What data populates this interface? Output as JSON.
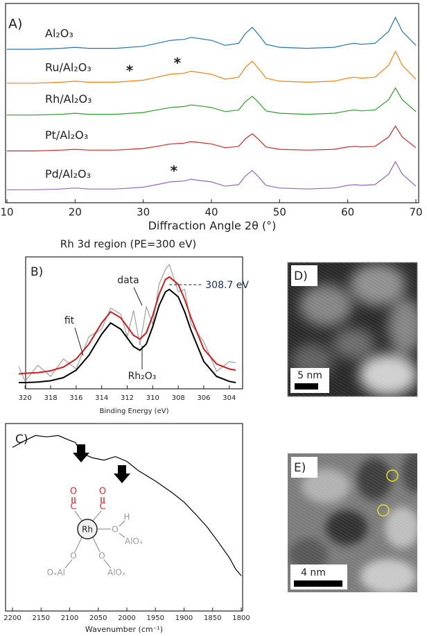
{
  "chart_data": [
    {
      "type": "line",
      "panel_label": "A)",
      "xlabel": "Diffraction Angle 2θ (°)",
      "x": [
        10,
        14,
        18,
        20,
        22,
        26,
        30,
        32,
        34,
        36,
        37,
        38,
        40,
        42,
        44,
        45,
        46,
        47,
        48,
        50,
        54,
        58,
        60,
        61,
        62,
        64,
        66,
        67,
        68,
        70
      ],
      "xlim": [
        10,
        70
      ],
      "xticks": [
        10,
        20,
        30,
        40,
        50,
        60,
        70
      ],
      "ylim": [
        0,
        10
      ],
      "series": [
        {
          "name": "Al₂O₃",
          "color": "#1f77b4",
          "values": [
            7.7,
            7.7,
            7.75,
            7.8,
            7.75,
            7.75,
            7.85,
            8.0,
            8.15,
            8.2,
            8.3,
            8.25,
            8.15,
            7.9,
            8.0,
            8.5,
            8.8,
            8.4,
            7.95,
            7.8,
            7.75,
            7.8,
            7.95,
            8.0,
            7.95,
            8.0,
            8.6,
            9.3,
            8.6,
            7.9
          ]
        },
        {
          "name": "Ru/Al₂O₃",
          "color": "#ff7f0e",
          "values": [
            6.0,
            6.0,
            6.05,
            6.1,
            6.05,
            6.05,
            6.15,
            6.3,
            6.45,
            6.5,
            6.6,
            6.55,
            6.45,
            6.2,
            6.3,
            6.8,
            7.1,
            6.7,
            6.25,
            6.1,
            6.05,
            6.1,
            6.25,
            6.3,
            6.25,
            6.3,
            6.9,
            7.6,
            6.9,
            6.2
          ],
          "markers": [
            {
              "text": "*",
              "x": 28
            },
            {
              "text": "*",
              "x": 35
            }
          ]
        },
        {
          "name": "Rh/Al₂O₃",
          "color": "#2ca02c",
          "values": [
            4.4,
            4.4,
            4.44,
            4.49,
            4.44,
            4.44,
            4.53,
            4.66,
            4.78,
            4.83,
            4.91,
            4.87,
            4.78,
            4.57,
            4.66,
            5.08,
            5.34,
            5.0,
            4.61,
            4.49,
            4.44,
            4.49,
            4.61,
            4.66,
            4.61,
            4.66,
            5.17,
            5.76,
            5.17,
            4.57
          ]
        },
        {
          "name": "Pt/Al₂O₃",
          "color": "#d62728",
          "values": [
            2.6,
            2.6,
            2.64,
            2.68,
            2.64,
            2.64,
            2.72,
            2.83,
            2.95,
            2.99,
            3.07,
            3.03,
            2.95,
            2.76,
            2.83,
            3.22,
            3.46,
            3.15,
            2.8,
            2.68,
            2.64,
            2.68,
            2.8,
            2.83,
            2.8,
            2.83,
            3.3,
            3.85,
            3.3,
            2.76
          ]
        },
        {
          "name": "Pd/Al₂O₃",
          "color": "#9467bd",
          "values": [
            0.65,
            0.65,
            0.69,
            0.74,
            0.69,
            0.69,
            0.78,
            0.91,
            1.05,
            1.09,
            1.18,
            1.13,
            1.05,
            0.83,
            0.91,
            1.35,
            1.62,
            1.27,
            0.87,
            0.74,
            0.69,
            0.74,
            0.87,
            0.91,
            0.87,
            0.91,
            1.44,
            2.06,
            1.44,
            0.83
          ],
          "markers": [
            {
              "text": "*",
              "x": 34.5
            }
          ]
        }
      ]
    },
    {
      "type": "line",
      "panel_label": "B)",
      "title": "Rh 3d region (PE=300 eV)",
      "xlabel": "Binding Energy (eV)",
      "x": [
        320.5,
        320,
        319,
        318,
        317,
        316,
        315,
        314,
        313.3,
        312.5,
        312,
        311.5,
        311,
        310.5,
        310,
        309.5,
        309,
        308.7,
        308,
        307.5,
        307,
        306,
        305,
        304,
        303.5
      ],
      "xlim": [
        320.5,
        303.5
      ],
      "xticks": [
        320,
        318,
        316,
        314,
        312,
        310,
        308,
        306,
        304
      ],
      "ylim": [
        0,
        10.5
      ],
      "series": [
        {
          "name": "data",
          "color": "#a0a0a0",
          "values": [
            1.8,
            0.6,
            1.9,
            1.0,
            2.4,
            1.6,
            4.2,
            4.8,
            6.5,
            6.0,
            4.2,
            6.3,
            3.5,
            6.6,
            5.2,
            8.4,
            9.6,
            10.0,
            7.8,
            8.0,
            5.2,
            3.8,
            1.4,
            2.2,
            2.1
          ]
        },
        {
          "name": "fit",
          "color": "#d01c1c",
          "values": [
            1.2,
            1.25,
            1.3,
            1.45,
            1.75,
            2.4,
            3.6,
            5.3,
            6.2,
            5.7,
            5.0,
            4.3,
            4.0,
            4.5,
            5.9,
            7.6,
            8.8,
            9.0,
            8.4,
            7.2,
            5.7,
            3.2,
            2.0,
            1.6,
            1.5
          ]
        },
        {
          "name": "Rh₂O₃",
          "color": "#000000",
          "values": [
            0.5,
            0.5,
            0.55,
            0.65,
            0.9,
            1.5,
            2.7,
            4.4,
            5.3,
            4.8,
            4.1,
            3.4,
            3.1,
            3.6,
            5.0,
            6.7,
            7.8,
            8.0,
            7.4,
            6.2,
            4.7,
            2.2,
            1.0,
            0.6,
            0.5
          ]
        }
      ],
      "annotations": [
        {
          "text": "308.7 eV",
          "x": 308.7
        }
      ]
    },
    {
      "type": "line",
      "panel_label": "C)",
      "xlabel": "Wavenumber (cm⁻¹)",
      "x": [
        2200,
        2180,
        2160,
        2140,
        2120,
        2100,
        2090,
        2080,
        2060,
        2040,
        2020,
        2000,
        1980,
        1950,
        1920,
        1900,
        1880,
        1860,
        1840,
        1820,
        1810,
        1800
      ],
      "xlim": [
        2200,
        1800
      ],
      "xticks": [
        2200,
        2150,
        2100,
        2050,
        2000,
        1950,
        1900,
        1850,
        1800
      ],
      "ylim": [
        0,
        10
      ],
      "series": [
        {
          "color": "#000000",
          "values": [
            8.79,
            9.13,
            9.43,
            9.36,
            9.43,
            9.17,
            9.06,
            8.49,
            8.23,
            8.11,
            8.3,
            8.04,
            7.55,
            6.98,
            6.34,
            5.85,
            5.21,
            4.53,
            3.7,
            2.83,
            2.26,
            1.89
          ]
        }
      ],
      "inset": {
        "atoms": [
          "O",
          "C",
          "O",
          "C",
          "Rh",
          "O",
          "H",
          "AlOₓ",
          "O",
          "OₓAl",
          "O",
          "AlOₓ"
        ]
      }
    }
  ],
  "images": [
    {
      "label": "D)",
      "scale_bar": "5 nm"
    },
    {
      "label": "E)",
      "scale_bar": "4 nm"
    }
  ]
}
